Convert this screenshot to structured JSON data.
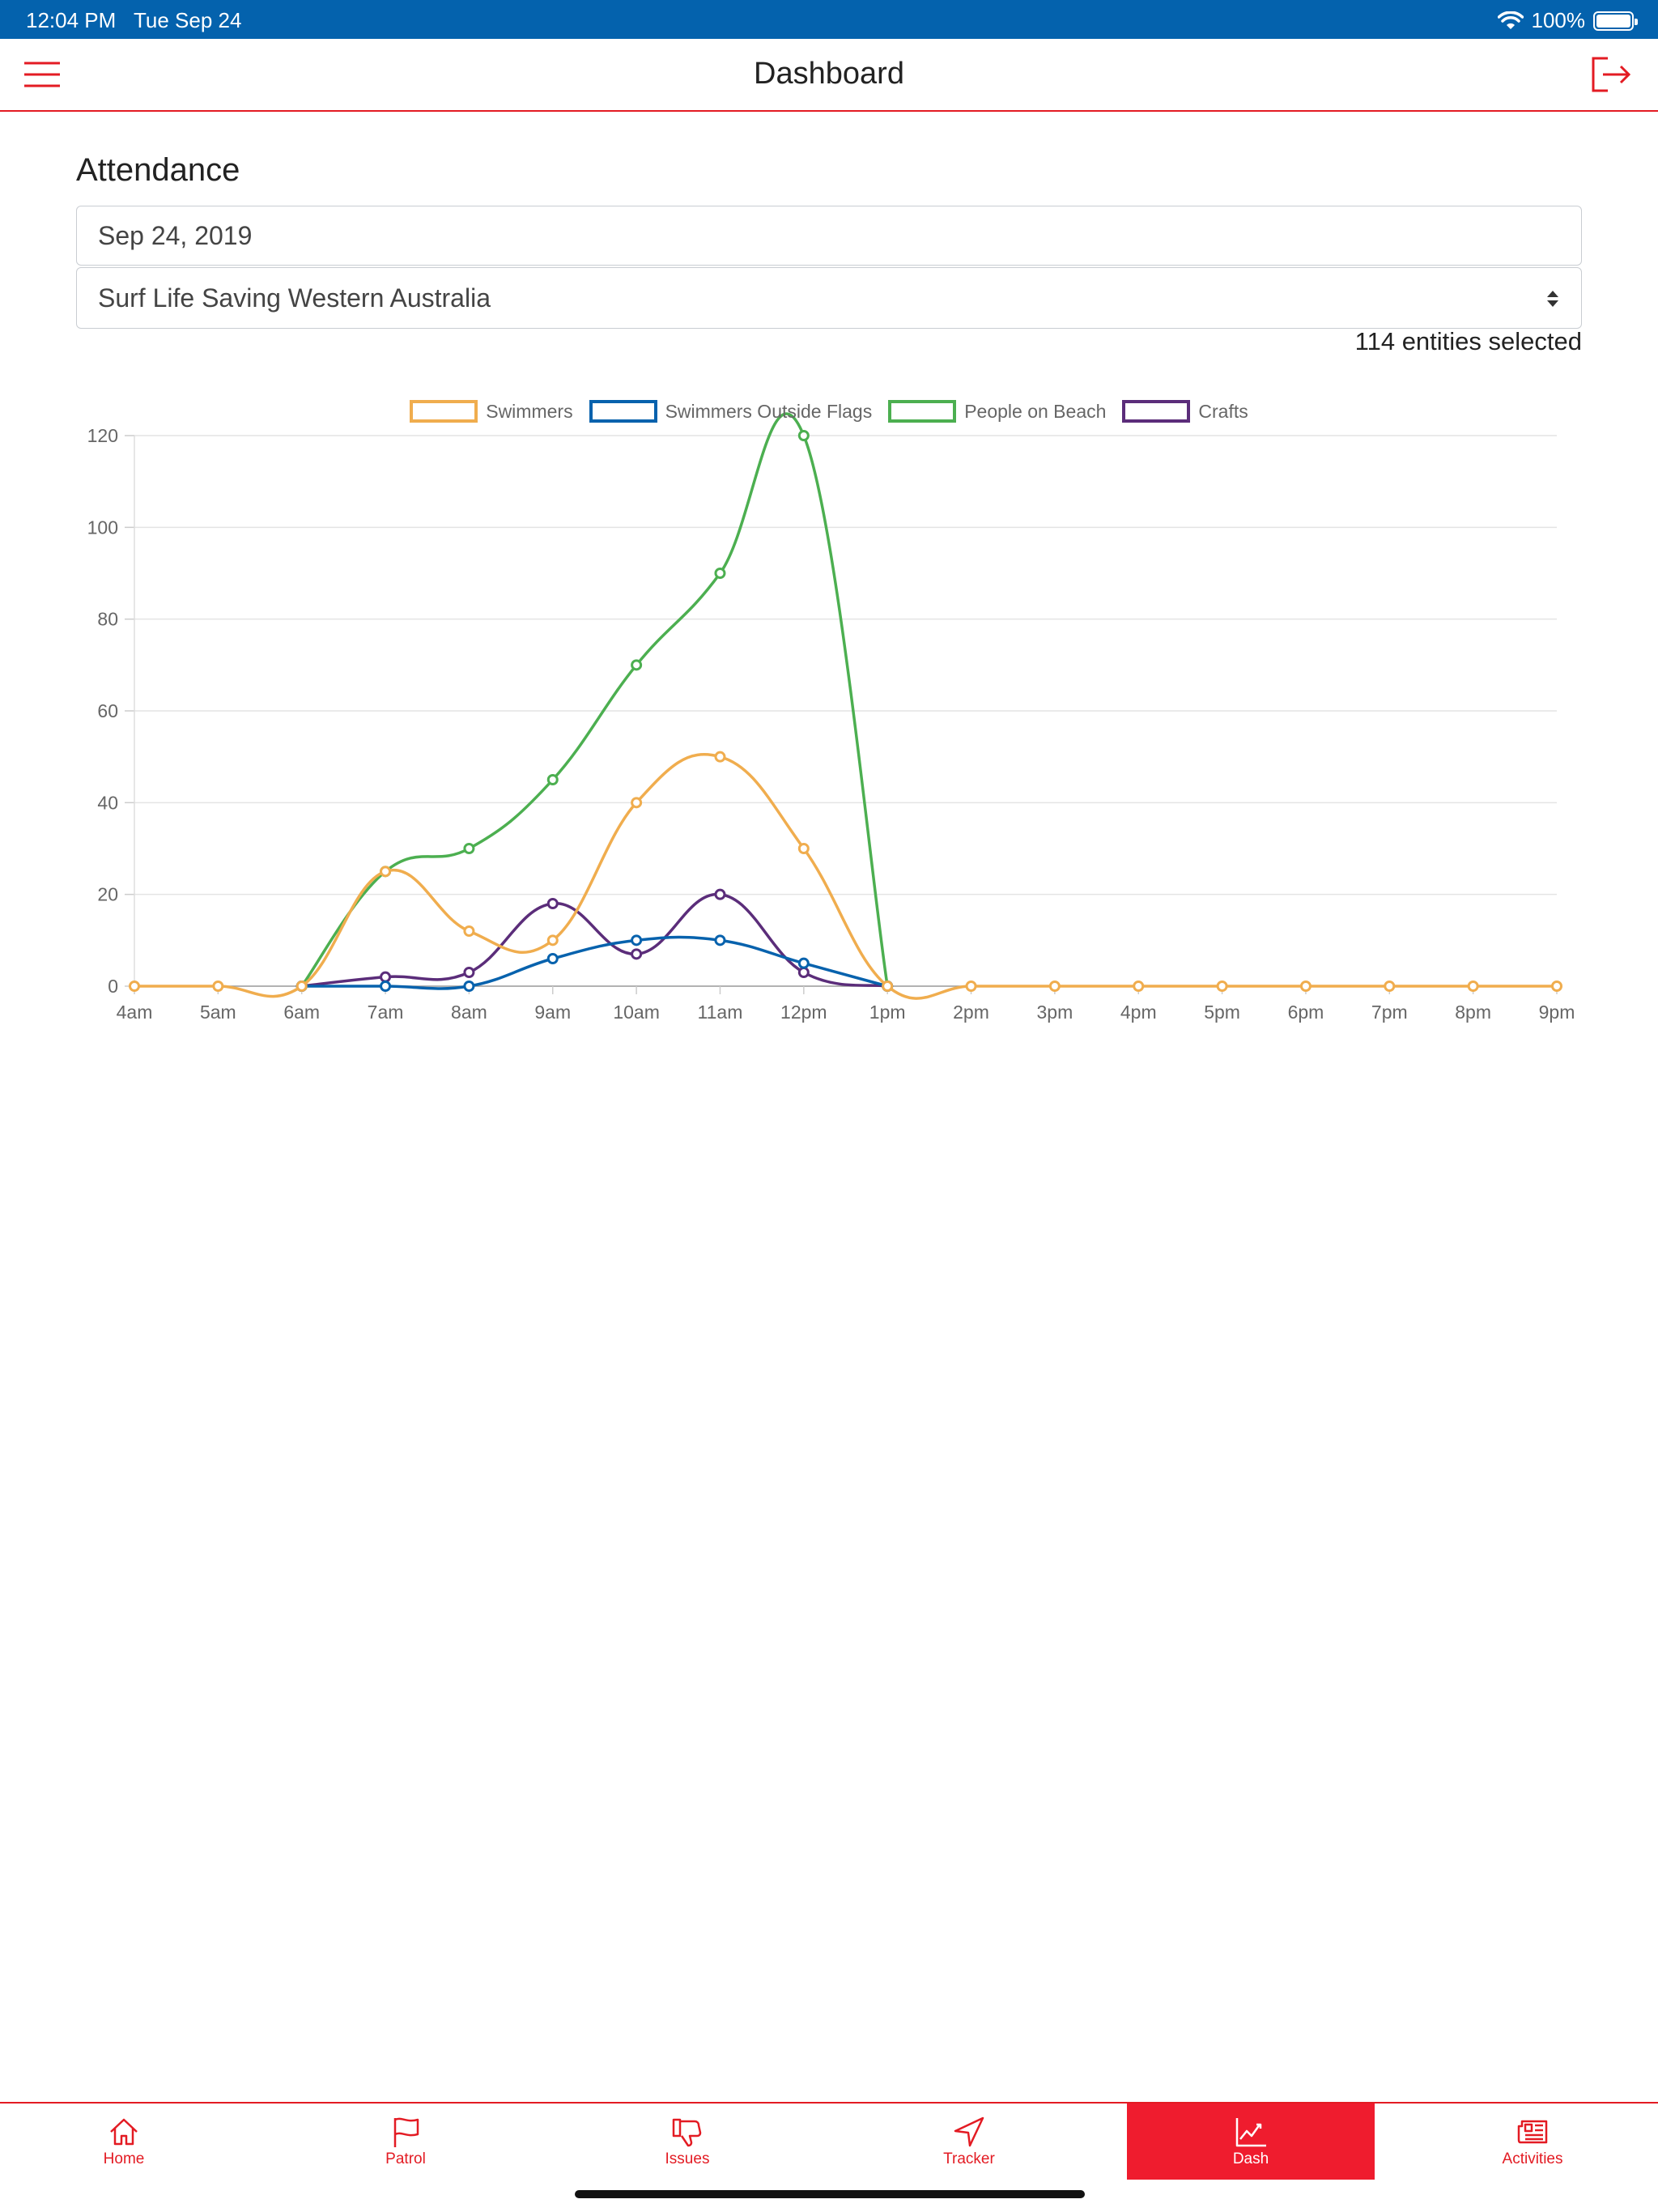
{
  "status_bar": {
    "time": "12:04 PM",
    "date": "Tue Sep 24",
    "battery": "100%",
    "battery_level": 1.0
  },
  "nav": {
    "title": "Dashboard",
    "menu_icon": "hamburger-menu-icon",
    "logout_icon": "logout-icon"
  },
  "attendance": {
    "title": "Attendance",
    "date_value": "Sep 24, 2019",
    "organisation_value": "Surf Life Saving Western Australia",
    "entities_selected": "114 entities selected"
  },
  "chart_data": {
    "type": "line",
    "title": "",
    "xlabel": "",
    "ylabel": "",
    "ylim": [
      0,
      120
    ],
    "yticks": [
      0,
      20,
      40,
      60,
      80,
      100,
      120
    ],
    "categories": [
      "4am",
      "5am",
      "6am",
      "7am",
      "8am",
      "9am",
      "10am",
      "11am",
      "12pm",
      "1pm",
      "2pm",
      "3pm",
      "4pm",
      "5pm",
      "6pm",
      "7pm",
      "8pm",
      "9pm"
    ],
    "grid": true,
    "legend_position": "top",
    "series": [
      {
        "name": "People on Beach",
        "color": "#4caf50",
        "values": [
          null,
          null,
          0,
          25,
          30,
          45,
          70,
          90,
          120,
          0,
          null,
          null,
          null,
          null,
          null,
          null,
          null,
          null
        ]
      },
      {
        "name": "Crafts",
        "color": "#5b2d7a",
        "values": [
          null,
          null,
          0,
          2,
          3,
          18,
          7,
          20,
          3,
          0,
          null,
          null,
          null,
          null,
          null,
          null,
          null,
          null
        ]
      },
      {
        "name": "Swimmers Outside Flags",
        "color": "#0762ad",
        "values": [
          null,
          null,
          0,
          0,
          0,
          6,
          10,
          10,
          5,
          0,
          null,
          null,
          null,
          null,
          null,
          null,
          null,
          null
        ]
      },
      {
        "name": "Swimmers",
        "color": "#f0ad4e",
        "values": [
          0,
          0,
          0,
          25,
          12,
          10,
          40,
          50,
          30,
          0,
          0,
          0,
          0,
          0,
          0,
          0,
          0,
          0
        ]
      }
    ],
    "legend_order": [
      "Swimmers",
      "Swimmers Outside Flags",
      "People on Beach",
      "Crafts"
    ]
  },
  "tabs": [
    {
      "label": "Home",
      "icon": "home-icon",
      "active": false
    },
    {
      "label": "Patrol",
      "icon": "flag-icon",
      "active": false
    },
    {
      "label": "Issues",
      "icon": "thumbs-down-icon",
      "active": false
    },
    {
      "label": "Tracker",
      "icon": "navigation-arrow-icon",
      "active": false
    },
    {
      "label": "Dash",
      "icon": "chart-icon",
      "active": true
    },
    {
      "label": "Activities",
      "icon": "newspaper-icon",
      "active": false
    }
  ],
  "colors": {
    "brand_red": "#e31b23",
    "status_blue": "#0462ad"
  }
}
